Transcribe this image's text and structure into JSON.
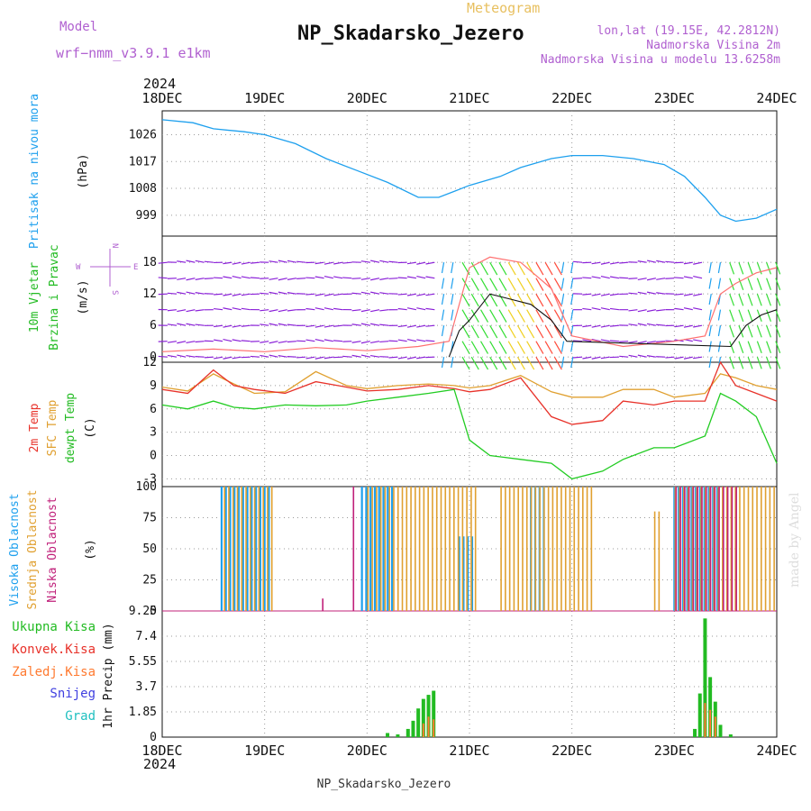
{
  "header": {
    "title": "NP_Skadarsko_Jezero",
    "subtitle": "Meteogram",
    "model_label": "Model",
    "model_name": "wrf−nmm_v3.9.1  e1km",
    "lonlat": "lon,lat (19.15E, 42.2812N)",
    "elevation": "Nadmorska Visina 2m",
    "model_elevation": "Nadmorska Visina u modelu 13.6258m",
    "year": "2024",
    "footer": "NP_Skadarsko_Jezero",
    "credit": "made by Angel"
  },
  "colors": {
    "pressure": "#1ea0ee",
    "temp2m": "#e8322a",
    "sfc": "#e0a030",
    "dewpt": "#22cc22",
    "high_cloud": "#1ea0ee",
    "mid_cloud": "#e0a030",
    "low_cloud": "#c0207a",
    "title_model": "#b060d0",
    "title_main_subtitle": "#e8c060",
    "wind_label": "#22bb22",
    "wind_dir_label": "#b060d0",
    "gust": "#ff7070",
    "precip_total": "#22bb22",
    "precip_conv": "#e8322a",
    "precip_frz": "#ff7a30",
    "precip_snow": "#4040e0",
    "precip_grad": "#20c0c0"
  },
  "chart_data": [
    {
      "id": "pressure",
      "type": "line",
      "ylabel_color_text": "Pritisak na nivou mora",
      "ylabel": "(hPa)",
      "x_ticks": [
        "18DEC",
        "19DEC",
        "20DEC",
        "21DEC",
        "22DEC",
        "23DEC",
        "24DEC"
      ],
      "ylim": [
        992,
        1034
      ],
      "yticks": [
        999,
        1008,
        1017,
        1026
      ],
      "series": [
        {
          "x": [
            0,
            0.3,
            0.5,
            0.8,
            1.0,
            1.3,
            1.6,
            1.9,
            2.2,
            2.5,
            2.7,
            2.85,
            3.0,
            3.3,
            3.5,
            3.8,
            4.0,
            4.3,
            4.6,
            4.9,
            5.1,
            5.3,
            5.45,
            5.6,
            5.8,
            6.0
          ],
          "values": [
            1031,
            1030,
            1028,
            1027,
            1026,
            1023,
            1018,
            1014,
            1010,
            1005,
            1005,
            1007,
            1009,
            1012,
            1015,
            1018,
            1019,
            1019,
            1018,
            1016,
            1012,
            1005,
            999,
            997,
            998,
            1001
          ]
        }
      ]
    },
    {
      "id": "wind",
      "type": "line",
      "ylabel_color_text": "10m Vjetar\nBrzina i Pravac",
      "ylabel": "(m/s)",
      "compass": [
        "W",
        "E",
        "N",
        "S"
      ],
      "ylim": [
        -1,
        23
      ],
      "yticks": [
        0,
        6,
        12,
        18
      ],
      "series": [
        {
          "name": "gust",
          "x": [
            0,
            0.5,
            1.0,
            1.5,
            2.0,
            2.5,
            2.8,
            3.0,
            3.2,
            3.5,
            3.8,
            4.0,
            4.5,
            5.0,
            5.3,
            5.45,
            5.6,
            5.8,
            6.0
          ],
          "values": [
            1,
            1.5,
            1,
            1.8,
            1.2,
            2,
            3,
            17,
            19,
            18,
            13,
            4,
            2,
            3,
            4,
            12,
            14,
            16,
            17
          ]
        },
        {
          "name": "speed",
          "x": [
            2.8,
            2.9,
            3.0,
            3.2,
            3.4,
            3.6,
            3.8,
            3.95,
            5.55,
            5.7,
            5.85,
            6.0
          ],
          "values": [
            0,
            5,
            7,
            12,
            11,
            10,
            7,
            3,
            2,
            6,
            8,
            9
          ]
        }
      ]
    },
    {
      "id": "temperature",
      "type": "line",
      "ylabel_lines": [
        "2m Temp",
        "SFC Temp",
        "dewpt Temp"
      ],
      "ylabel": "(C)",
      "ylim": [
        -4,
        12
      ],
      "yticks": [
        -3,
        0,
        3,
        6,
        9,
        12
      ],
      "x": [
        0,
        0.25,
        0.5,
        0.7,
        0.9,
        1.2,
        1.5,
        1.8,
        2.0,
        2.3,
        2.6,
        2.85,
        3.0,
        3.2,
        3.5,
        3.8,
        4.0,
        4.3,
        4.5,
        4.8,
        5.0,
        5.3,
        5.45,
        5.6,
        5.8,
        6.0
      ],
      "series": [
        {
          "name": "2m Temp",
          "values": [
            8.5,
            8,
            11,
            9,
            8.5,
            8,
            9.5,
            8.8,
            8.3,
            8.5,
            9,
            8.6,
            8.2,
            8.5,
            10,
            5,
            4,
            4.5,
            7,
            6.5,
            7,
            7,
            12,
            9,
            8,
            7
          ]
        },
        {
          "name": "SFC Temp",
          "values": [
            8.8,
            8.3,
            10.5,
            9.2,
            8,
            8.2,
            10.8,
            9,
            8.6,
            9,
            9.2,
            9,
            8.7,
            9,
            10.3,
            8.2,
            7.5,
            7.5,
            8.5,
            8.5,
            7.5,
            8,
            10.5,
            10,
            9,
            8.5
          ]
        },
        {
          "name": "dewpt Temp",
          "values": [
            6.5,
            6,
            7,
            6.2,
            6,
            6.5,
            6.4,
            6.5,
            7,
            7.5,
            8,
            8.5,
            2,
            0,
            -0.5,
            -1,
            -3,
            -2,
            -0.5,
            1,
            1,
            2.5,
            8,
            7,
            5,
            -1
          ]
        }
      ]
    },
    {
      "id": "cloud",
      "type": "bar",
      "ylabel_lines": [
        "Visoka Oblacnost",
        "Srednja Oblacnost",
        "Niska Oblacnost"
      ],
      "ylabel": "(%)",
      "ylim": [
        0,
        100
      ],
      "yticks": [
        0,
        25,
        50,
        75,
        100
      ],
      "series": [
        {
          "name": "Visoka Oblacnost",
          "segments": [
            [
              0.58,
              1.05,
              100
            ],
            [
              1.95,
              2.25,
              100
            ],
            [
              2.9,
              3.05,
              60
            ],
            [
              3.6,
              3.75,
              100
            ],
            [
              5.0,
              5.45,
              100
            ]
          ]
        },
        {
          "name": "Srednja Oblacnost",
          "segments": [
            [
              0.6,
              1.1,
              100
            ],
            [
              2.0,
              3.05,
              100
            ],
            [
              3.3,
              4.2,
              100
            ],
            [
              4.8,
              4.85,
              80
            ],
            [
              5.0,
              6.0,
              100
            ]
          ]
        },
        {
          "name": "Niska Oblacnost",
          "segments": [
            [
              1.55,
              1.56,
              10
            ],
            [
              1.85,
              1.86,
              100
            ],
            [
              5.0,
              5.6,
              100
            ]
          ]
        }
      ]
    },
    {
      "id": "precip",
      "type": "bar",
      "ylabel": "1hr Precip (mm)",
      "ylim": [
        0,
        9.25
      ],
      "yticks": [
        0,
        1.85,
        3.7,
        5.55,
        7.4,
        9.25
      ],
      "legend": [
        "Ukupna Kisa",
        "Konvek.Kisa",
        "Zaledj.Kisa",
        "Snijeg",
        "Grad"
      ],
      "total": {
        "x": [
          2.2,
          2.3,
          2.4,
          2.45,
          2.5,
          2.55,
          2.6,
          2.65,
          5.2,
          5.25,
          5.3,
          5.35,
          5.4,
          5.45,
          5.55
        ],
        "values": [
          0.3,
          0.2,
          0.6,
          1.2,
          2.1,
          2.8,
          3.1,
          3.4,
          0.6,
          3.2,
          8.7,
          4.4,
          2.6,
          0.9,
          0.2
        ]
      },
      "convective": {
        "x": [
          2.55,
          2.6,
          2.65,
          5.3,
          5.35,
          5.4
        ],
        "values": [
          1.0,
          1.5,
          1.3,
          2.5,
          2.0,
          1.5
        ]
      }
    }
  ]
}
